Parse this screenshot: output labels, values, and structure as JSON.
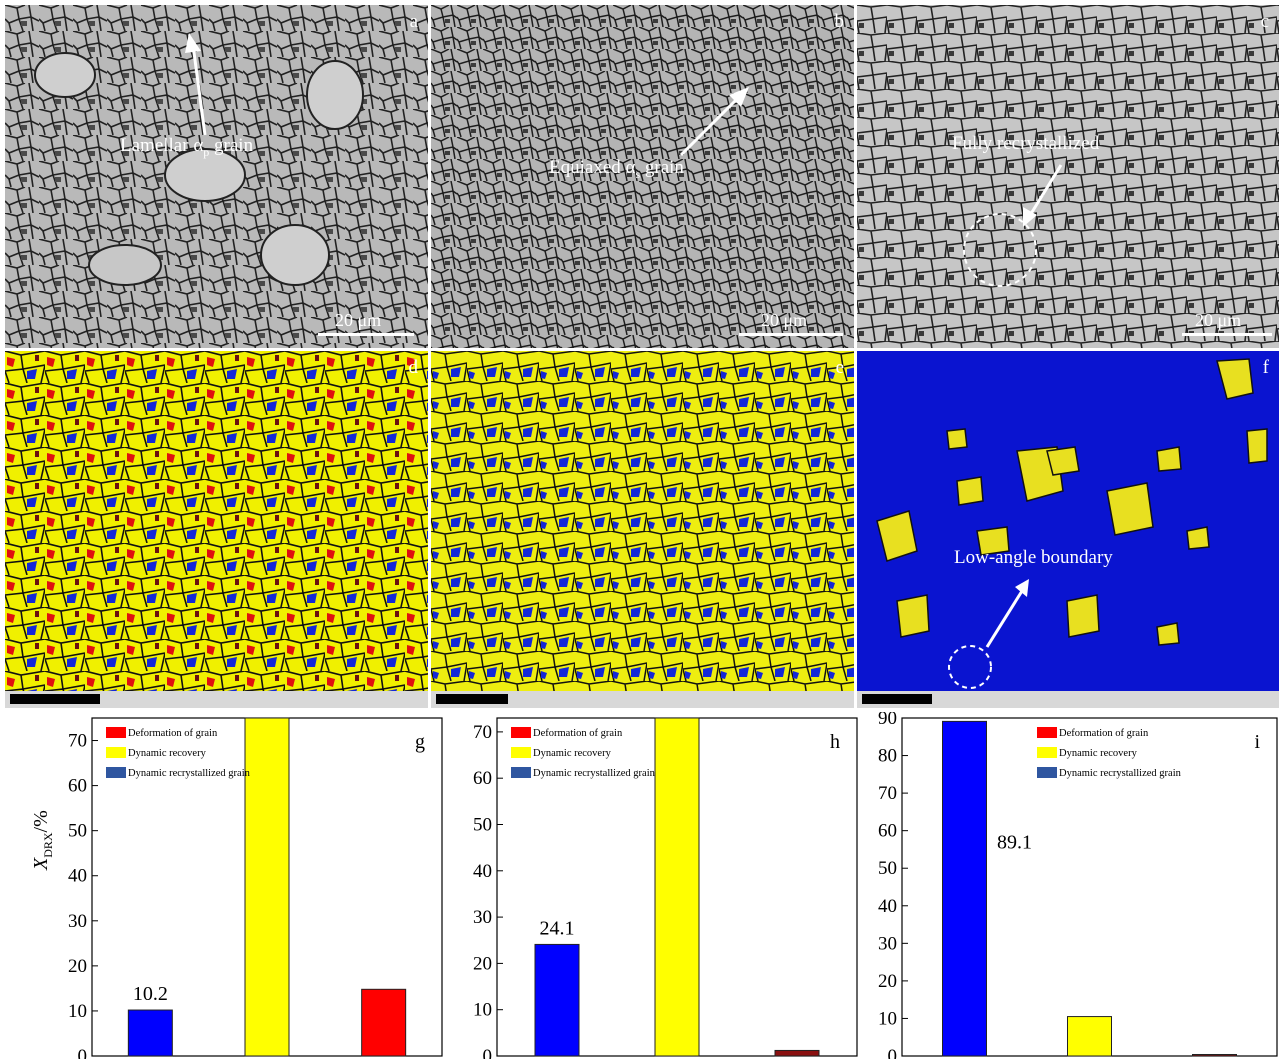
{
  "panels_top": [
    {
      "id": "a",
      "label": "a",
      "annotation": "Lamellar α",
      "annotation_sub": "p",
      "annotation_tail": " grain",
      "scale": "20 μm"
    },
    {
      "id": "b",
      "label": "b",
      "annotation": "Equiaxed α",
      "annotation_sub": "s",
      "annotation_tail": " grain",
      "scale": "20 μm"
    },
    {
      "id": "c",
      "label": "c",
      "annotation": "Fully recrystallized",
      "scale": "20 μm"
    }
  ],
  "panels_mid": [
    {
      "id": "d",
      "label": "d"
    },
    {
      "id": "e",
      "label": "e"
    },
    {
      "id": "f",
      "label": "f",
      "annotation": "Low-angle boundary"
    }
  ],
  "colors": {
    "deformation": "#ff0000",
    "recovery": "#ffff00",
    "recrystallized": "#0000ff",
    "legend_recrystallized": "#2f56a0"
  },
  "y_axis_label_main": "X",
  "y_axis_label_sub": "DRX",
  "y_axis_label_tail": "/%",
  "chart_data": [
    {
      "type": "bar",
      "label": "g",
      "legend": [
        "Deformation of grain",
        "Dynamic recovery",
        "Dynamic recrystallized grain"
      ],
      "ylim": [
        0,
        75
      ],
      "yticks": [
        0,
        10,
        20,
        30,
        40,
        50,
        60,
        70
      ],
      "bars": [
        {
          "series": "Dynamic recrystallized grain",
          "value": 10.2,
          "label": "10.2"
        },
        {
          "series": "Dynamic recovery",
          "value": 75,
          "label": ""
        },
        {
          "series": "Deformation of grain",
          "value": 14.8,
          "label": ""
        }
      ]
    },
    {
      "type": "bar",
      "label": "h",
      "legend": [
        "Deformation of grain",
        "Dynamic recovery",
        "Dynamic recrystallized grain"
      ],
      "ylim": [
        0,
        73
      ],
      "yticks": [
        0,
        10,
        20,
        30,
        40,
        50,
        60,
        70
      ],
      "bars": [
        {
          "series": "Dynamic recrystallized grain",
          "value": 24.1,
          "label": "24.1"
        },
        {
          "series": "Dynamic recovery",
          "value": 73,
          "label": ""
        },
        {
          "series": "Deformation of grain",
          "value": 1.2,
          "label": ""
        }
      ]
    },
    {
      "type": "bar",
      "label": "i",
      "legend": [
        "Deformation of grain",
        "Dynamic recovery",
        "Dynamic recrystallized grain"
      ],
      "ylim": [
        0,
        90
      ],
      "yticks": [
        0,
        10,
        20,
        30,
        40,
        50,
        60,
        70,
        80,
        90
      ],
      "bars": [
        {
          "series": "Dynamic recrystallized grain",
          "value": 89.1,
          "label": "89.1"
        },
        {
          "series": "Dynamic recovery",
          "value": 10.5,
          "label": ""
        },
        {
          "series": "Deformation of grain",
          "value": 0.4,
          "label": ""
        }
      ]
    }
  ]
}
